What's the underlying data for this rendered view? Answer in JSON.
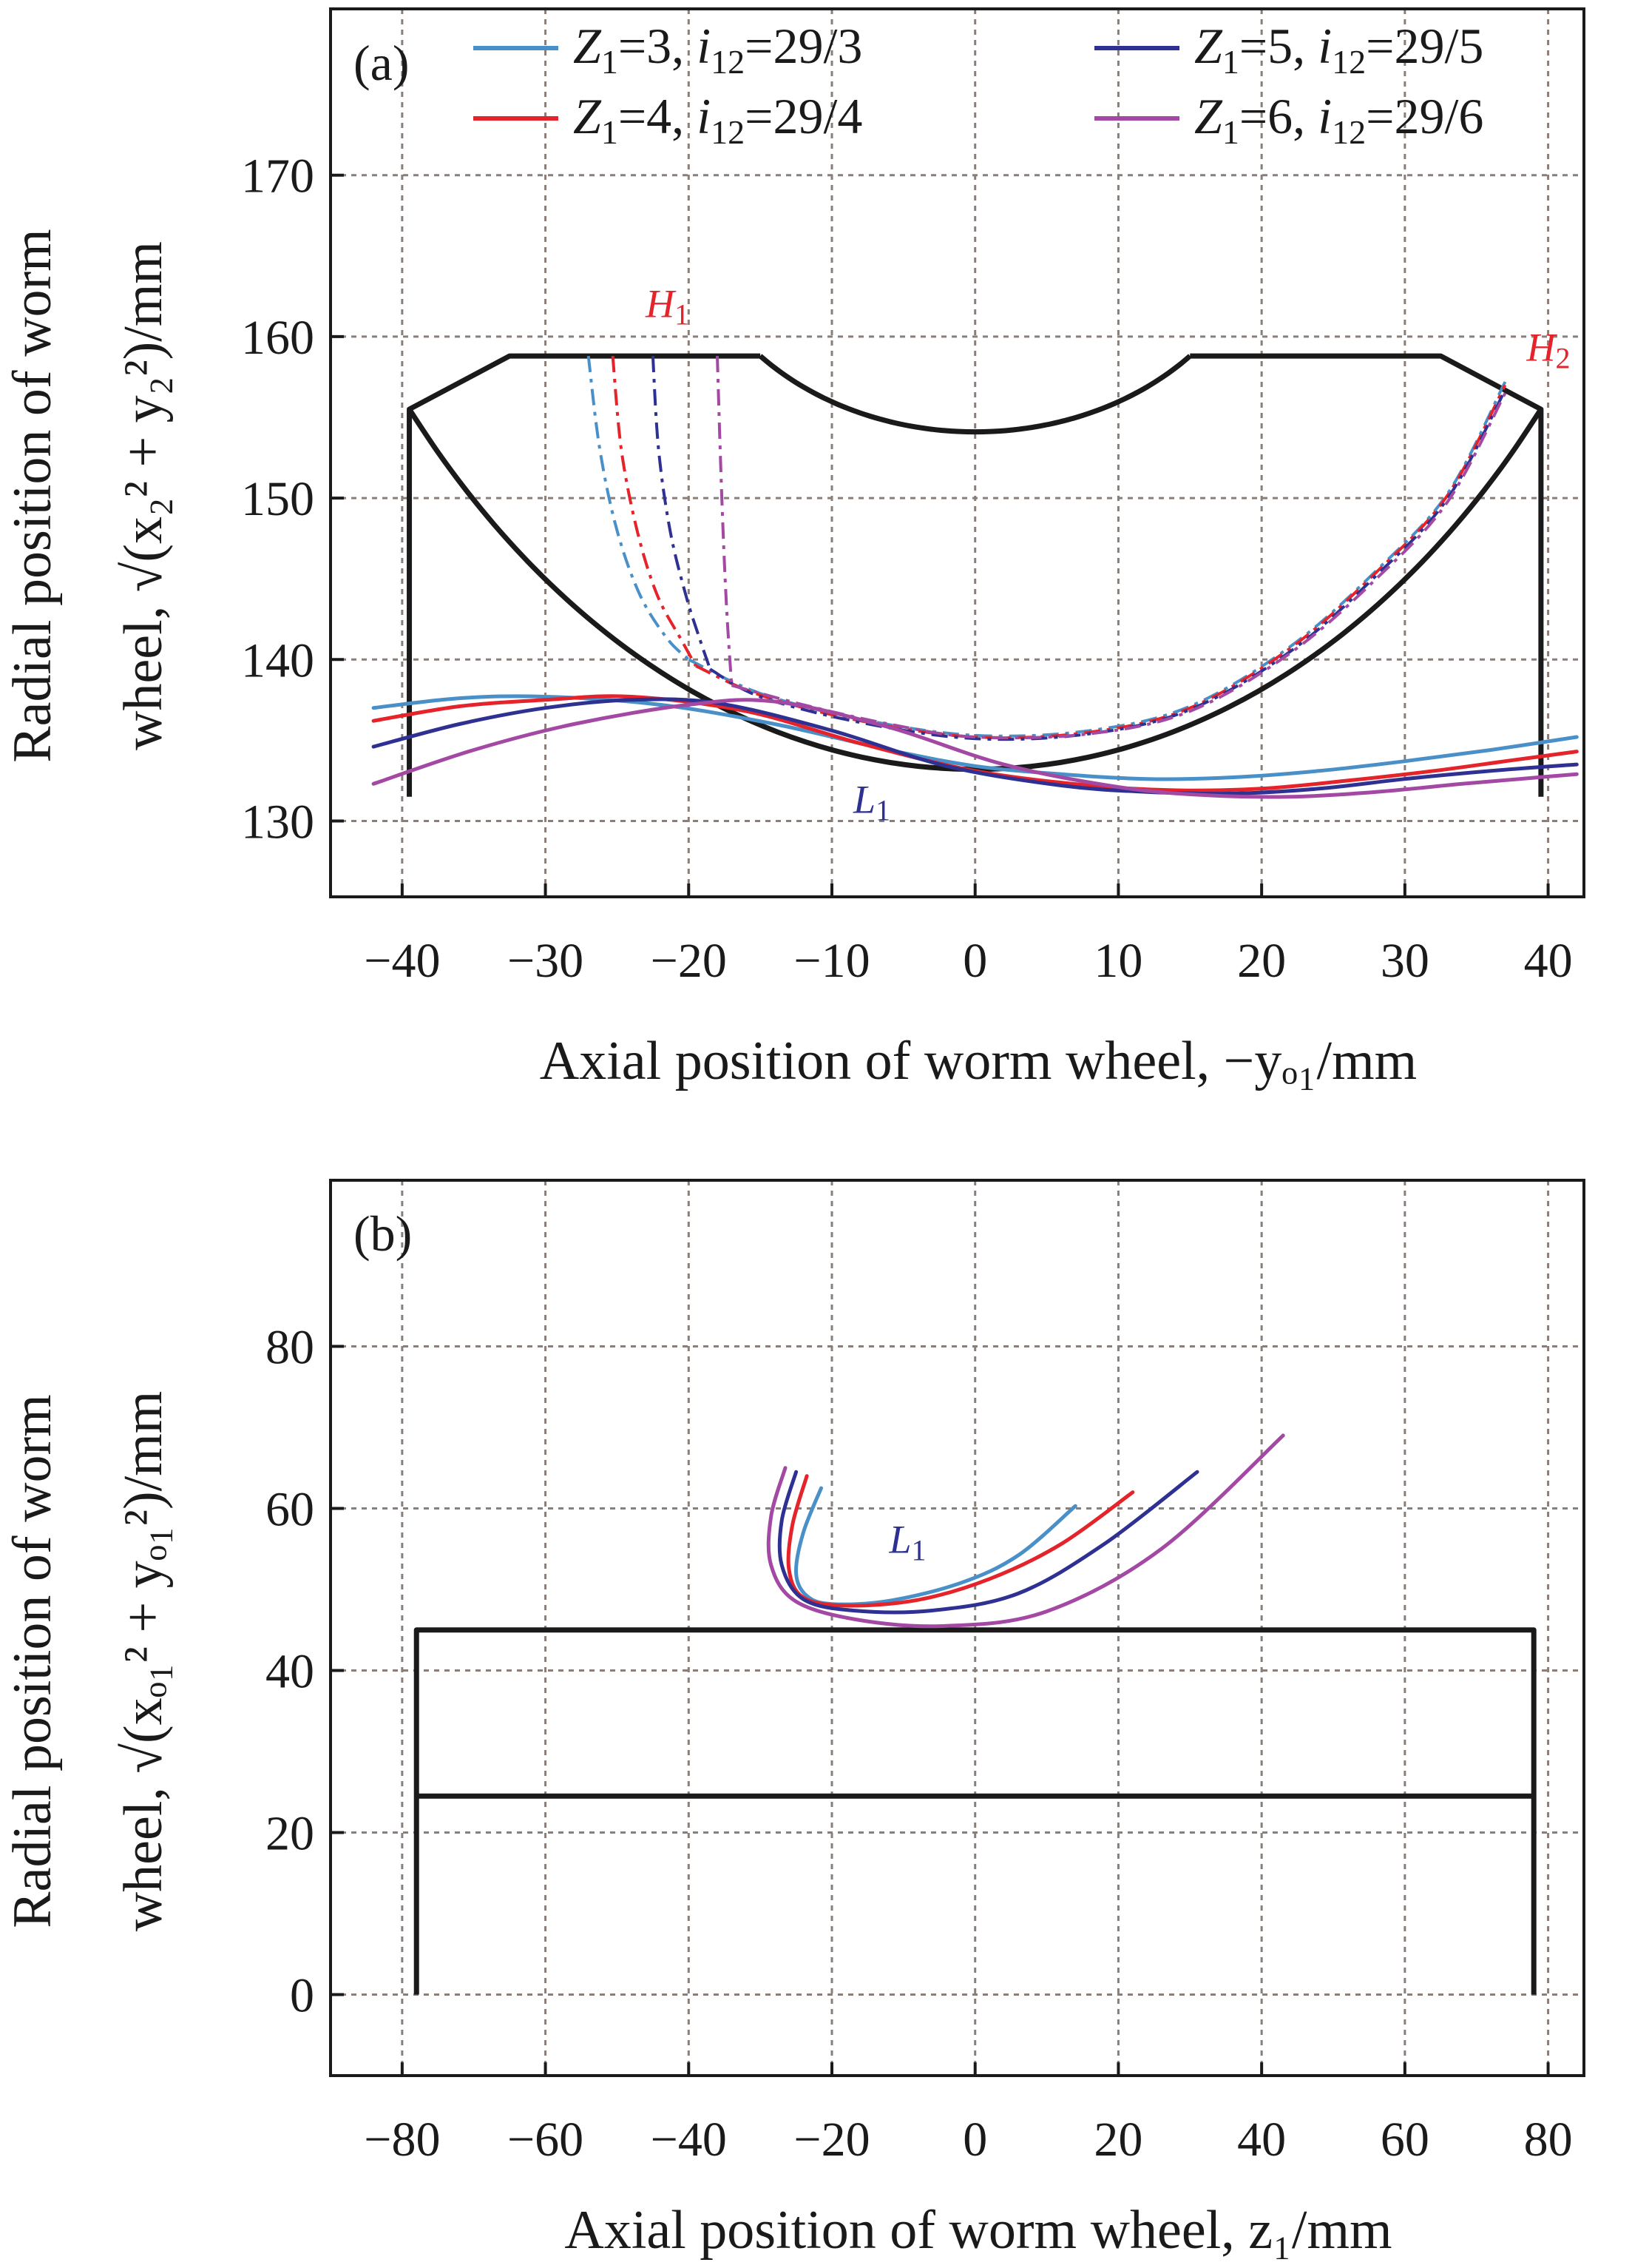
{
  "chart_data": [
    {
      "type": "line",
      "panel_label": "(a)",
      "xlabel": "Axial position of worm wheel, −yₒ₁/mm",
      "ylabel_line1": "Radial position of worm",
      "ylabel_line2": "wheel, √(x₂² + y₂²)/mm",
      "xlim": [
        -45,
        42.5
      ],
      "ylim": [
        125.3,
        180.3
      ],
      "xticks": [
        -40,
        -30,
        -20,
        -10,
        0,
        10,
        20,
        30,
        40
      ],
      "yticks": [
        130,
        140,
        150,
        160,
        170
      ],
      "grid": true,
      "legend": {
        "placement": "top",
        "entries": [
          {
            "var": "Z",
            "sub": "1",
            "eq": "=3, ",
            "ivar": "i",
            "isub": "12",
            "ratio": "=29/3",
            "color": "#4a90c8"
          },
          {
            "var": "Z",
            "sub": "1",
            "eq": "=4, ",
            "ivar": "i",
            "isub": "12",
            "ratio": "=29/4",
            "color": "#e4232a"
          },
          {
            "var": "Z",
            "sub": "1",
            "eq": "=5, ",
            "ivar": "i",
            "isub": "12",
            "ratio": "=29/5",
            "color": "#2e3192"
          },
          {
            "var": "Z",
            "sub": "1",
            "eq": "=6, ",
            "ivar": "i",
            "isub": "12",
            "ratio": "=29/6",
            "color": "#a349a4"
          }
        ]
      },
      "annotations": [
        {
          "base": "H",
          "sub": "1",
          "x": -23,
          "y": 161.2,
          "color": "#e4232a"
        },
        {
          "base": "H",
          "sub": "2",
          "x": 38.5,
          "y": 158.5,
          "color": "#e4232a"
        },
        {
          "base": "L",
          "sub": "1",
          "x": -8.5,
          "y": 130.5,
          "color": "#2e3192"
        }
      ],
      "outline": [
        [
          [
            -39.5,
            131.5
          ],
          [
            -39.5,
            155.5
          ],
          [
            -32.5,
            158.8
          ],
          [
            -15,
            158.8
          ]
        ],
        [
          [
            15,
            158.8
          ],
          [
            32.5,
            158.8
          ],
          [
            39.5,
            155.5
          ],
          [
            39.5,
            131.5
          ]
        ]
      ],
      "arc_top": {
        "x_from": -15,
        "x_to": 15,
        "y_ends": 158.8,
        "y_mid": 154.1
      },
      "arc_bottom": {
        "x_from": -39.5,
        "x_to": 39.5,
        "y_ends": 155.5,
        "y_mid": 133.2
      },
      "series": [
        {
          "color": "#4a90c8",
          "solid": [
            [
              -42,
              137
            ],
            [
              -36,
              137.6
            ],
            [
              -30,
              137.7
            ],
            [
              -22,
              137.2
            ],
            [
              -14,
              136
            ],
            [
              -6,
              134.4
            ],
            [
              0,
              133.4
            ],
            [
              6,
              132.9
            ],
            [
              12,
              132.6
            ],
            [
              18,
              132.7
            ],
            [
              24,
              133.1
            ],
            [
              30,
              133.7
            ],
            [
              36,
              134.4
            ],
            [
              42,
              135.2
            ]
          ],
          "contact": [
            [
              -20,
              140
            ],
            [
              -15,
              137.9
            ],
            [
              -8,
              136.3
            ],
            [
              0,
              135.3
            ],
            [
              8,
              135.6
            ],
            [
              15,
              137.1
            ],
            [
              22,
              140.8
            ],
            [
              28,
              145.5
            ],
            [
              33,
              150.3
            ],
            [
              37,
              157.2
            ]
          ],
          "dashdot": [
            [
              -27,
              158.8
            ],
            [
              -26.2,
              153
            ],
            [
              -25,
              148
            ],
            [
              -23.4,
              144
            ],
            [
              -21.5,
              141.3
            ],
            [
              -20,
              140
            ]
          ]
        },
        {
          "color": "#e4232a",
          "solid": [
            [
              -42,
              136.2
            ],
            [
              -36,
              137.1
            ],
            [
              -30,
              137.5
            ],
            [
              -24,
              137.7
            ],
            [
              -16,
              136.8
            ],
            [
              -8,
              134.8
            ],
            [
              0,
              133.1
            ],
            [
              8,
              132.2
            ],
            [
              14,
              131.9
            ],
            [
              20,
              132
            ],
            [
              26,
              132.5
            ],
            [
              32,
              133.1
            ],
            [
              37,
              133.7
            ],
            [
              42,
              134.3
            ]
          ],
          "contact": [
            [
              -19.5,
              139.6
            ],
            [
              -15,
              137.8
            ],
            [
              -8,
              136.2
            ],
            [
              0,
              135.2
            ],
            [
              8,
              135.5
            ],
            [
              15,
              137
            ],
            [
              22,
              140.7
            ],
            [
              28,
              145.4
            ],
            [
              33,
              150.2
            ],
            [
              37,
              157
            ]
          ],
          "dashdot": [
            [
              -25.3,
              158.8
            ],
            [
              -24.7,
              153
            ],
            [
              -23.6,
              148
            ],
            [
              -22.2,
              144
            ],
            [
              -20.5,
              141.2
            ],
            [
              -19.5,
              139.6
            ]
          ]
        },
        {
          "color": "#2e3192",
          "solid": [
            [
              -42,
              134.6
            ],
            [
              -36,
              136
            ],
            [
              -30,
              137
            ],
            [
              -24,
              137.5
            ],
            [
              -18,
              137.3
            ],
            [
              -10,
              135.6
            ],
            [
              -2,
              133.4
            ],
            [
              6,
              132.2
            ],
            [
              12,
              131.8
            ],
            [
              18,
              131.7
            ],
            [
              24,
              132
            ],
            [
              30,
              132.6
            ],
            [
              36,
              133.1
            ],
            [
              42,
              133.5
            ]
          ],
          "contact": [
            [
              -18.5,
              139.4
            ],
            [
              -15,
              137.7
            ],
            [
              -8,
              136.1
            ],
            [
              0,
              135.1
            ],
            [
              8,
              135.4
            ],
            [
              15,
              136.9
            ],
            [
              22,
              140.5
            ],
            [
              28,
              145.2
            ],
            [
              33,
              150
            ],
            [
              37,
              156.7
            ]
          ],
          "dashdot": [
            [
              -22.5,
              158.8
            ],
            [
              -22.1,
              153
            ],
            [
              -21.3,
              148
            ],
            [
              -20.2,
              144
            ],
            [
              -19.2,
              141.2
            ],
            [
              -18.5,
              139.4
            ]
          ]
        },
        {
          "color": "#a349a4",
          "solid": [
            [
              -42,
              132.3
            ],
            [
              -35,
              134.4
            ],
            [
              -28,
              136
            ],
            [
              -20,
              137.2
            ],
            [
              -14,
              137.4
            ],
            [
              -6,
              135.8
            ],
            [
              2,
              133.5
            ],
            [
              10,
              132.1
            ],
            [
              16,
              131.6
            ],
            [
              22,
              131.5
            ],
            [
              28,
              131.8
            ],
            [
              34,
              132.3
            ],
            [
              38,
              132.6
            ],
            [
              42,
              132.9
            ]
          ],
          "contact": [
            [
              -17,
              138.4
            ],
            [
              -12,
              137.2
            ],
            [
              -6,
              136
            ],
            [
              0,
              135.2
            ],
            [
              8,
              135.4
            ],
            [
              15,
              136.8
            ],
            [
              22,
              140.4
            ],
            [
              28,
              145
            ],
            [
              33,
              149.8
            ],
            [
              37,
              156.5
            ]
          ],
          "dashdot": [
            [
              -18,
              158.8
            ],
            [
              -17.8,
              153
            ],
            [
              -17.6,
              148
            ],
            [
              -17.4,
              144
            ],
            [
              -17.2,
              141
            ],
            [
              -17,
              138.4
            ]
          ]
        }
      ]
    },
    {
      "type": "line",
      "panel_label": "(b)",
      "xlabel": "Axial position of worm wheel, z₁/mm",
      "ylabel_line1": "Radial position of worm",
      "ylabel_line2": "wheel, √(xₒ₁² + yₒ₁²)/mm",
      "xlim": [
        -90,
        85
      ],
      "ylim": [
        -10,
        100.5
      ],
      "xticks": [
        -80,
        -60,
        -40,
        -20,
        0,
        20,
        40,
        60,
        80
      ],
      "yticks": [
        0,
        20,
        40,
        60,
        80
      ],
      "grid": true,
      "annotations": [
        {
          "base": "L",
          "sub": "1",
          "x": -12,
          "y": 54.5,
          "color": "#2e3192"
        }
      ],
      "outline": [
        [
          [
            -78,
            0
          ],
          [
            -78,
            45
          ],
          [
            78,
            45
          ],
          [
            78,
            0
          ]
        ],
        [
          [
            -78,
            24.5
          ],
          [
            78,
            24.5
          ]
        ]
      ],
      "series": [
        {
          "color": "#4a90c8",
          "solid": [
            [
              -21.5,
              62.5
            ],
            [
              -24,
              57
            ],
            [
              -25,
              52
            ],
            [
              -23.5,
              49.2
            ],
            [
              -20,
              48.2
            ],
            [
              -12,
              48.6
            ],
            [
              -2,
              50.8
            ],
            [
              6,
              54.2
            ],
            [
              14,
              60.3
            ]
          ]
        },
        {
          "color": "#e4232a",
          "solid": [
            [
              -23.5,
              64
            ],
            [
              -25.5,
              58
            ],
            [
              -26,
              52.5
            ],
            [
              -24,
              49
            ],
            [
              -18,
              48
            ],
            [
              -8,
              48.7
            ],
            [
              2,
              51.3
            ],
            [
              12,
              55.6
            ],
            [
              22,
              62
            ]
          ]
        },
        {
          "color": "#2e3192",
          "solid": [
            [
              -25,
              64.5
            ],
            [
              -27,
              58.5
            ],
            [
              -27,
              53
            ],
            [
              -24,
              48.8
            ],
            [
              -17,
              47.4
            ],
            [
              -6,
              47.4
            ],
            [
              6,
              49.5
            ],
            [
              18,
              55.6
            ],
            [
              31,
              64.5
            ]
          ]
        },
        {
          "color": "#a349a4",
          "solid": [
            [
              -26.5,
              65
            ],
            [
              -28.5,
              59
            ],
            [
              -28.5,
              53
            ],
            [
              -25,
              48.5
            ],
            [
              -16,
              46.2
            ],
            [
              -4,
              45.5
            ],
            [
              10,
              47.3
            ],
            [
              26,
              55
            ],
            [
              43,
              69
            ]
          ]
        }
      ]
    }
  ]
}
